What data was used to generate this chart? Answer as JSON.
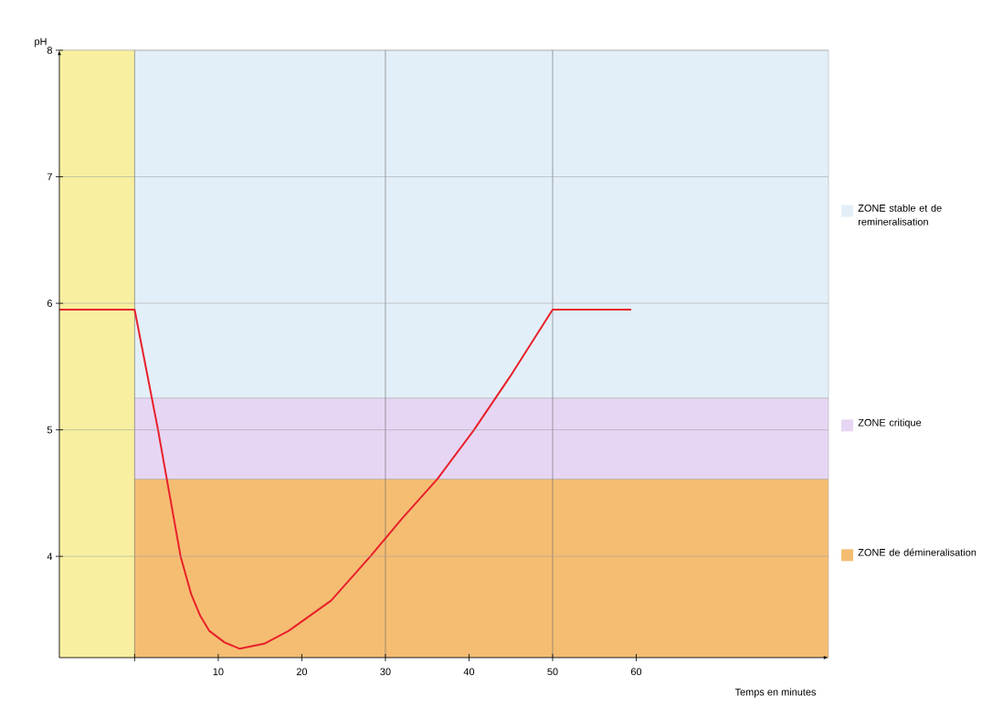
{
  "chart_data": {
    "type": "line",
    "xlabel": "Temps en minutes",
    "ylabel": "pH",
    "x": [
      -9,
      0,
      2.8,
      3.85,
      5.5,
      6.77,
      7.85,
      8.95,
      10.76,
      12.57,
      15.5,
      18.4,
      23.5,
      28.2,
      32,
      36.2,
      40.6,
      44.9,
      50,
      59.4
    ],
    "series": [
      {
        "color": "#e8202a",
        "values": [
          5.95,
          5.95,
          5.0,
          4.61,
          4.0,
          3.7,
          3.53,
          3.41,
          3.32,
          3.27,
          3.31,
          3.41,
          3.65,
          4.0,
          4.3,
          4.61,
          5.0,
          5.42,
          5.95,
          5.95
        ]
      }
    ],
    "xlim": [
      -9,
      83
    ],
    "ylim": [
      3.2,
      8
    ],
    "xticks": [
      {
        "value": 0,
        "label": null
      },
      10,
      20,
      30,
      40,
      50,
      60
    ],
    "yticks": [
      4,
      5,
      6,
      7,
      8
    ],
    "grid": "y",
    "bands": [
      {
        "axis": "y",
        "from": 5.25,
        "to": 8,
        "label": "ZONE stable et de remineralisation",
        "color": "#e3eff8"
      },
      {
        "axis": "y",
        "from": 4.61,
        "to": 5.25,
        "label": "ZONE critique",
        "color": "#e6d6f4"
      },
      {
        "axis": "y",
        "from": 3.2,
        "to": 4.61,
        "label": "ZONE de démineralisation",
        "color": "#f5bd72"
      },
      {
        "axis": "x",
        "from": -9,
        "to": 0,
        "color": "#f8f0a0"
      }
    ],
    "ref_lines": [
      {
        "axis": "x",
        "value": 0,
        "color": "#666666"
      },
      {
        "axis": "x",
        "value": 30,
        "color": "#666666"
      },
      {
        "axis": "x",
        "value": 50,
        "color": "#666666"
      }
    ],
    "legend": "right"
  }
}
